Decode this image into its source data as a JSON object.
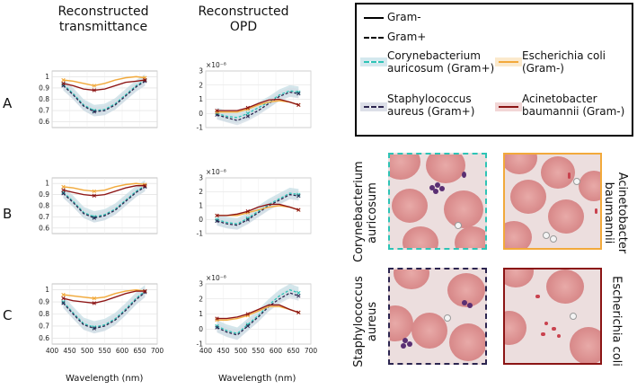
{
  "headers": {
    "transmittance_line1": "Reconstructed",
    "transmittance_line2": "transmittance",
    "opd_line1": "Reconstructed",
    "opd_line2": "OPD"
  },
  "row_labels": [
    "A",
    "B",
    "C"
  ],
  "x_axis_label": "Wavelength (nm)",
  "opd_exponent": "×10⁻⁸",
  "legend": {
    "gram_neg": "Gram-",
    "gram_pos": "Gram+",
    "coryne_line1": "Corynebacterium",
    "coryne_line2": "auricosum (Gram+)",
    "ecoli_line1": "Escherichia coli",
    "ecoli_line2": "(Gram-)",
    "staph_line1": "Staphylococcus",
    "staph_line2": "aureus (Gram+)",
    "acineto_line1": "Acinetobacter",
    "acineto_line2": "baumannii (Gram-)"
  },
  "colors": {
    "coryne": "#2ec4b6",
    "ecoli": "#f2a93b",
    "staph": "#2c2550",
    "acineto": "#8b1414",
    "band": "#c2d9e2"
  },
  "micro_labels": {
    "coryne_line1": "Corynebacterium",
    "coryne_line2": "auricosum",
    "acineto_line1": "Acinetobacter",
    "acineto_line2": "baumannii",
    "staph_line1": "Staphylococcus",
    "staph_line2": "aureus",
    "ecoli": "Escherichia coli"
  },
  "chart_data": [
    {
      "id": "A-T",
      "type": "line",
      "row": "A",
      "title": "Reconstructed transmittance",
      "xlabel": "Wavelength (nm)",
      "ylabel": "",
      "xlim": [
        400,
        700
      ],
      "ylim": [
        0.55,
        1.05
      ],
      "xticks": [],
      "yticks": [
        0.6,
        0.7,
        0.8,
        0.9,
        1
      ],
      "x": [
        432,
        460,
        490,
        520,
        550,
        580,
        610,
        640,
        665
      ],
      "series": [
        {
          "name": "Corynebacterium auricosum (Gram+)",
          "values": [
            0.93,
            0.85,
            0.75,
            0.7,
            0.71,
            0.76,
            0.84,
            0.92,
            0.97
          ]
        },
        {
          "name": "Staphylococcus aureus (Gram+)",
          "values": [
            0.92,
            0.84,
            0.74,
            0.69,
            0.7,
            0.75,
            0.83,
            0.91,
            0.96
          ]
        },
        {
          "name": "Escherichia coli (Gram-)",
          "values": [
            0.97,
            0.96,
            0.94,
            0.92,
            0.94,
            0.97,
            0.99,
            1.0,
            0.99
          ]
        },
        {
          "name": "Acinetobacter baumannii (Gram-)",
          "values": [
            0.94,
            0.92,
            0.89,
            0.88,
            0.89,
            0.92,
            0.95,
            0.96,
            0.97
          ]
        }
      ]
    },
    {
      "id": "A-O",
      "type": "line",
      "row": "A",
      "title": "Reconstructed OPD",
      "xlabel": "Wavelength (nm)",
      "ylabel": "×10⁻⁸",
      "xlim": [
        400,
        700
      ],
      "ylim": [
        -1,
        3
      ],
      "xticks": [],
      "yticks": [
        -1,
        0,
        1,
        2,
        3
      ],
      "x": [
        432,
        460,
        490,
        520,
        550,
        580,
        610,
        640,
        665
      ],
      "series": [
        {
          "name": "Corynebacterium auricosum (Gram+)",
          "values": [
            0.0,
            -0.2,
            -0.3,
            0.0,
            0.4,
            0.8,
            1.3,
            1.6,
            1.5
          ]
        },
        {
          "name": "Staphylococcus aureus (Gram+)",
          "values": [
            -0.1,
            -0.3,
            -0.5,
            -0.2,
            0.2,
            0.7,
            1.2,
            1.5,
            1.4
          ]
        },
        {
          "name": "Escherichia coli (Gram-)",
          "values": [
            0.1,
            0.1,
            0.1,
            0.3,
            0.6,
            0.8,
            0.9,
            0.8,
            0.6
          ]
        },
        {
          "name": "Acinetobacter baumannii (Gram-)",
          "values": [
            0.2,
            0.2,
            0.2,
            0.4,
            0.7,
            0.95,
            1.0,
            0.8,
            0.6
          ]
        }
      ]
    },
    {
      "id": "B-T",
      "type": "line",
      "row": "B",
      "title": "Reconstructed transmittance",
      "xlabel": "Wavelength (nm)",
      "ylabel": "",
      "xlim": [
        400,
        700
      ],
      "ylim": [
        0.55,
        1.05
      ],
      "xticks": [],
      "yticks": [
        0.6,
        0.7,
        0.8,
        0.9,
        1
      ],
      "x": [
        432,
        460,
        490,
        520,
        550,
        580,
        610,
        640,
        665
      ],
      "series": [
        {
          "name": "Corynebacterium auricosum (Gram+)",
          "values": [
            0.92,
            0.84,
            0.74,
            0.7,
            0.72,
            0.77,
            0.85,
            0.93,
            0.98
          ]
        },
        {
          "name": "Staphylococcus aureus (Gram+)",
          "values": [
            0.91,
            0.83,
            0.73,
            0.69,
            0.71,
            0.76,
            0.84,
            0.92,
            0.97
          ]
        },
        {
          "name": "Escherichia coli (Gram-)",
          "values": [
            0.97,
            0.96,
            0.94,
            0.93,
            0.94,
            0.97,
            0.99,
            1.0,
            0.99
          ]
        },
        {
          "name": "Acinetobacter baumannii (Gram-)",
          "values": [
            0.94,
            0.92,
            0.9,
            0.89,
            0.9,
            0.93,
            0.96,
            0.98,
            0.98
          ]
        }
      ]
    },
    {
      "id": "B-O",
      "type": "line",
      "row": "B",
      "title": "Reconstructed OPD",
      "xlabel": "Wavelength (nm)",
      "ylabel": "×10⁻⁸",
      "xlim": [
        400,
        700
      ],
      "ylim": [
        -1,
        3
      ],
      "xticks": [],
      "yticks": [
        -1,
        0,
        1,
        2,
        3
      ],
      "x": [
        432,
        460,
        490,
        520,
        550,
        580,
        610,
        640,
        665
      ],
      "series": [
        {
          "name": "Corynebacterium auricosum (Gram+)",
          "values": [
            0.0,
            -0.2,
            -0.3,
            0.1,
            0.6,
            1.1,
            1.5,
            1.9,
            1.8
          ]
        },
        {
          "name": "Staphylococcus aureus (Gram+)",
          "values": [
            -0.1,
            -0.3,
            -0.4,
            0.0,
            0.5,
            1.0,
            1.4,
            1.8,
            1.7
          ]
        },
        {
          "name": "Escherichia coli (Gram-)",
          "values": [
            0.3,
            0.3,
            0.3,
            0.5,
            0.7,
            0.9,
            1.0,
            0.9,
            0.7
          ]
        },
        {
          "name": "Acinetobacter baumannii (Gram-)",
          "values": [
            0.3,
            0.3,
            0.4,
            0.6,
            0.9,
            1.1,
            1.1,
            0.9,
            0.7
          ]
        }
      ]
    },
    {
      "id": "C-T",
      "type": "line",
      "row": "C",
      "title": "Reconstructed transmittance",
      "xlabel": "Wavelength (nm)",
      "ylabel": "",
      "xlim": [
        400,
        700
      ],
      "ylim": [
        0.55,
        1.05
      ],
      "xticks": [
        400,
        450,
        500,
        550,
        600,
        650,
        700
      ],
      "yticks": [
        0.6,
        0.7,
        0.8,
        0.9,
        1
      ],
      "x": [
        432,
        460,
        490,
        520,
        550,
        580,
        610,
        640,
        665
      ],
      "series": [
        {
          "name": "Corynebacterium auricosum (Gram+)",
          "values": [
            0.9,
            0.81,
            0.72,
            0.69,
            0.71,
            0.76,
            0.84,
            0.93,
            0.99
          ]
        },
        {
          "name": "Staphylococcus aureus (Gram+)",
          "values": [
            0.89,
            0.8,
            0.71,
            0.68,
            0.7,
            0.75,
            0.83,
            0.92,
            0.98
          ]
        },
        {
          "name": "Escherichia coli (Gram-)",
          "values": [
            0.96,
            0.95,
            0.94,
            0.93,
            0.94,
            0.97,
            0.99,
            1.0,
            0.99
          ]
        },
        {
          "name": "Acinetobacter baumannii (Gram-)",
          "values": [
            0.93,
            0.91,
            0.9,
            0.89,
            0.91,
            0.94,
            0.97,
            0.99,
            0.99
          ]
        }
      ]
    },
    {
      "id": "C-O",
      "type": "line",
      "row": "C",
      "title": "Reconstructed OPD",
      "xlabel": "Wavelength (nm)",
      "ylabel": "×10⁻⁸",
      "xlim": [
        400,
        700
      ],
      "ylim": [
        -1,
        3
      ],
      "xticks": [
        400,
        450,
        500,
        550,
        600,
        650,
        700
      ],
      "yticks": [
        -1,
        0,
        1,
        2,
        3
      ],
      "x": [
        432,
        460,
        490,
        520,
        550,
        580,
        610,
        640,
        665
      ],
      "series": [
        {
          "name": "Corynebacterium auricosum (Gram+)",
          "values": [
            0.2,
            -0.1,
            -0.3,
            0.3,
            0.9,
            1.6,
            2.2,
            2.6,
            2.4
          ]
        },
        {
          "name": "Staphylococcus aureus (Gram+)",
          "values": [
            0.1,
            -0.2,
            -0.4,
            0.2,
            0.8,
            1.5,
            2.0,
            2.4,
            2.2
          ]
        },
        {
          "name": "Escherichia coli (Gram-)",
          "values": [
            0.6,
            0.6,
            0.7,
            0.9,
            1.2,
            1.5,
            1.5,
            1.3,
            1.1
          ]
        },
        {
          "name": "Acinetobacter baumannii (Gram-)",
          "values": [
            0.7,
            0.7,
            0.8,
            1.0,
            1.3,
            1.6,
            1.6,
            1.3,
            1.1
          ]
        }
      ]
    }
  ]
}
